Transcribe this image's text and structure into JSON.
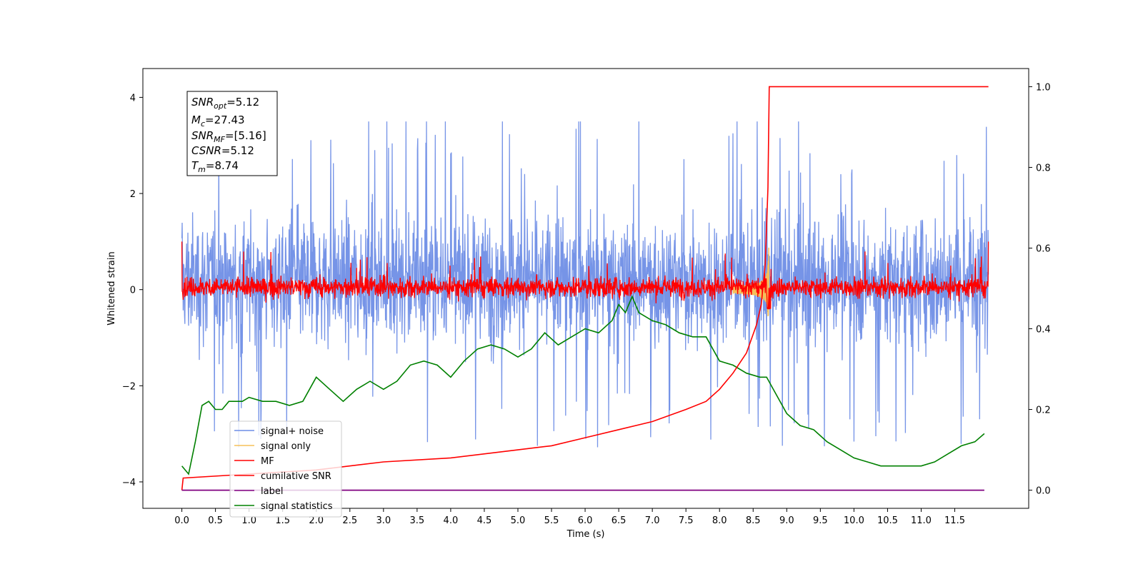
{
  "chart_data": {
    "type": "line",
    "xlabel": "Time (s)",
    "ylabel": "Whitened strain",
    "xlim": [
      -0.58,
      12.6
    ],
    "ylim": [
      -4.55,
      4.6
    ],
    "y2lim": [
      -0.045,
      1.045
    ],
    "x_ticks": [
      0.0,
      0.5,
      1.0,
      1.5,
      2.0,
      2.5,
      3.0,
      3.5,
      4.0,
      4.5,
      5.0,
      5.5,
      6.0,
      6.5,
      7.0,
      7.5,
      8.0,
      8.5,
      9.0,
      9.5,
      10.0,
      10.5,
      11.0,
      11.5
    ],
    "x_tick_labels": [
      "0.0",
      "0.5",
      "1.0",
      "1.5",
      "2.0",
      "2.5",
      "3.0",
      "3.5",
      "4.0",
      "4.5",
      "5.0",
      "5.5",
      "6.0",
      "6.5",
      "7.0",
      "7.5",
      "8.0",
      "8.5",
      "9.0",
      "9.5",
      "10.0",
      "10.5",
      "11.0",
      "11.5"
    ],
    "y_ticks": [
      -4,
      -2,
      0,
      2,
      4
    ],
    "y_tick_labels": [
      "−4",
      "−2",
      "0",
      "2",
      "4"
    ],
    "y2_ticks": [
      0.0,
      0.2,
      0.4,
      0.6,
      0.8,
      1.0
    ],
    "y2_tick_labels": [
      "0.0",
      "0.2",
      "0.4",
      "0.6",
      "0.8",
      "1.0"
    ],
    "legend_position": "lower-left",
    "grid": false,
    "annotation": {
      "snr_opt": {
        "name": "SNR",
        "sub": "opt",
        "value": "=5.12"
      },
      "mc": {
        "name": "M",
        "sub": "c",
        "value": "=27.43"
      },
      "snr_mf": {
        "name": "SNR",
        "sub": "MF",
        "value": "=[5.16]"
      },
      "csnr": {
        "name": "CSNR",
        "sub": "",
        "value": "=5.12"
      },
      "tm": {
        "name": "T",
        "sub": "m",
        "value": "=8.74"
      }
    },
    "series": [
      {
        "name": "signal+ noise",
        "color": "#6f8ee6",
        "axis": "left",
        "kind": "noise",
        "x_range": [
          0,
          12.0
        ],
        "band": [
          -2.0,
          2.4
        ],
        "spike_max": 3.5,
        "spike_min": -3.7
      },
      {
        "name": "signal only",
        "color": "#f5c05a",
        "axis": "left",
        "kind": "chirp",
        "t_merger": 8.74,
        "amplitude": 1.0
      },
      {
        "name": "MF",
        "color": "#ff0000",
        "axis": "left",
        "kind": "noise",
        "x_range": [
          0,
          12.0
        ],
        "band": [
          -0.25,
          0.35
        ],
        "spike_max": 0.8,
        "spike_min": -0.3
      },
      {
        "name": "cumilative SNR",
        "color": "#ff0000",
        "axis": "right",
        "x": [
          0.0,
          0.02,
          1.0,
          2.0,
          3.0,
          4.0,
          5.0,
          5.5,
          6.0,
          6.5,
          7.0,
          7.5,
          7.8,
          8.0,
          8.2,
          8.4,
          8.55,
          8.62,
          8.68,
          8.72,
          8.74,
          8.76,
          12.0
        ],
        "y": [
          0.0,
          0.03,
          0.04,
          0.05,
          0.07,
          0.08,
          0.1,
          0.11,
          0.13,
          0.15,
          0.17,
          0.2,
          0.22,
          0.25,
          0.29,
          0.34,
          0.41,
          0.46,
          0.56,
          0.75,
          1.0,
          1.0,
          1.0
        ]
      },
      {
        "name": "label",
        "color": "#800080",
        "axis": "right",
        "x": [
          0.0,
          11.94
        ],
        "y": [
          0.0,
          0.0
        ]
      },
      {
        "name": "signal statistics",
        "color": "#008000",
        "axis": "right",
        "x": [
          0.0,
          0.1,
          0.2,
          0.3,
          0.4,
          0.5,
          0.6,
          0.7,
          0.8,
          0.9,
          1.0,
          1.2,
          1.4,
          1.6,
          1.8,
          2.0,
          2.2,
          2.4,
          2.6,
          2.8,
          3.0,
          3.2,
          3.4,
          3.6,
          3.8,
          4.0,
          4.2,
          4.4,
          4.6,
          4.8,
          5.0,
          5.2,
          5.4,
          5.6,
          5.8,
          6.0,
          6.2,
          6.4,
          6.5,
          6.6,
          6.7,
          6.8,
          7.0,
          7.2,
          7.4,
          7.6,
          7.8,
          8.0,
          8.2,
          8.4,
          8.6,
          8.7,
          8.8,
          9.0,
          9.2,
          9.4,
          9.6,
          9.8,
          10.0,
          10.2,
          10.4,
          10.6,
          10.8,
          11.0,
          11.2,
          11.4,
          11.6,
          11.8,
          11.94
        ],
        "y": [
          0.06,
          0.04,
          0.12,
          0.21,
          0.22,
          0.2,
          0.2,
          0.22,
          0.22,
          0.22,
          0.23,
          0.22,
          0.22,
          0.21,
          0.22,
          0.28,
          0.25,
          0.22,
          0.25,
          0.27,
          0.25,
          0.27,
          0.31,
          0.32,
          0.31,
          0.28,
          0.32,
          0.35,
          0.36,
          0.35,
          0.33,
          0.35,
          0.39,
          0.36,
          0.38,
          0.4,
          0.39,
          0.42,
          0.46,
          0.44,
          0.48,
          0.44,
          0.42,
          0.41,
          0.39,
          0.38,
          0.38,
          0.32,
          0.31,
          0.29,
          0.28,
          0.28,
          0.25,
          0.19,
          0.16,
          0.15,
          0.12,
          0.1,
          0.08,
          0.07,
          0.06,
          0.06,
          0.06,
          0.06,
          0.07,
          0.09,
          0.11,
          0.12,
          0.14
        ]
      }
    ]
  }
}
